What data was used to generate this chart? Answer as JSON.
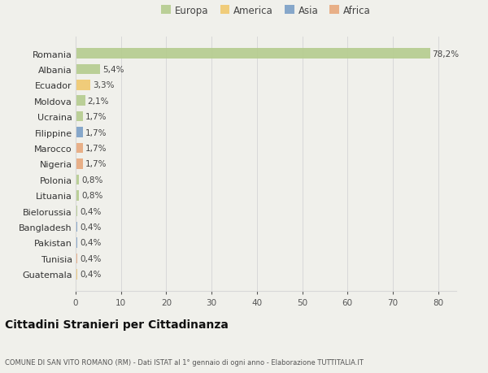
{
  "countries": [
    "Romania",
    "Albania",
    "Ecuador",
    "Moldova",
    "Ucraina",
    "Filippine",
    "Marocco",
    "Nigeria",
    "Polonia",
    "Lituania",
    "Bielorussia",
    "Bangladesh",
    "Pakistan",
    "Tunisia",
    "Guatemala"
  ],
  "values": [
    78.2,
    5.4,
    3.3,
    2.1,
    1.7,
    1.7,
    1.7,
    1.7,
    0.8,
    0.8,
    0.4,
    0.4,
    0.4,
    0.4,
    0.4
  ],
  "labels": [
    "78,2%",
    "5,4%",
    "3,3%",
    "2,1%",
    "1,7%",
    "1,7%",
    "1,7%",
    "1,7%",
    "0,8%",
    "0,8%",
    "0,4%",
    "0,4%",
    "0,4%",
    "0,4%",
    "0,4%"
  ],
  "continents": [
    "Europa",
    "Europa",
    "America",
    "Europa",
    "Europa",
    "Asia",
    "Africa",
    "Africa",
    "Europa",
    "Europa",
    "Europa",
    "Asia",
    "Asia",
    "Africa",
    "America"
  ],
  "continent_colors": {
    "Europa": "#b5cc8e",
    "America": "#f0c96e",
    "Asia": "#7b9fc7",
    "Africa": "#e8a87c"
  },
  "legend_order": [
    "Europa",
    "America",
    "Asia",
    "Africa"
  ],
  "bg_color": "#f0f0eb",
  "grid_color": "#d8d8d8",
  "title": "Cittadini Stranieri per Cittadinanza",
  "subtitle": "COMUNE DI SAN VITO ROMANO (RM) - Dati ISTAT al 1° gennaio di ogni anno - Elaborazione TUTTITALIA.IT",
  "xlim": [
    0,
    84
  ],
  "xticks": [
    0,
    10,
    20,
    30,
    40,
    50,
    60,
    70,
    80
  ]
}
